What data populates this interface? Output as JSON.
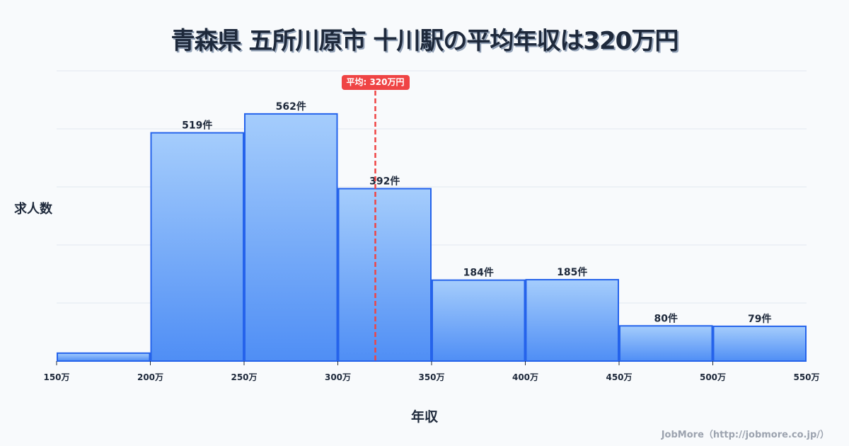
{
  "title": "青森県 五所川原市 十川駅の平均年収は320万円",
  "footer": "JobMore（http://jobmore.co.jp/）",
  "colors": {
    "bar_stroke": "#2563eb",
    "bar_fill_top": "#a5cdfc",
    "bar_fill_bottom": "#4f8ef5",
    "mean_line": "#ef4444",
    "gridline": "#e2e8f0",
    "text": "#1e293b",
    "background": "#f8fafc"
  },
  "chart_data": {
    "type": "bar",
    "subtype": "histogram",
    "title": "青森県 五所川原市 十川駅の平均年収は320万円",
    "xlabel": "年収",
    "ylabel": "求人数",
    "bin_edges": [
      150,
      200,
      250,
      300,
      350,
      400,
      450,
      500,
      550
    ],
    "x_tick_labels": [
      "150万",
      "200万",
      "250万",
      "300万",
      "350万",
      "400万",
      "450万",
      "500万",
      "550万"
    ],
    "categories": [
      "150-200万",
      "200-250万",
      "250-300万",
      "300-350万",
      "350-400万",
      "400-450万",
      "450-500万",
      "500-550万"
    ],
    "values": [
      18,
      519,
      562,
      392,
      184,
      185,
      80,
      79
    ],
    "value_labels": [
      "",
      "519件",
      "562件",
      "392件",
      "184件",
      "185件",
      "80件",
      "79件"
    ],
    "ylim": [
      0,
      660
    ],
    "grid": true,
    "legend": null,
    "annotations": [
      {
        "type": "vline",
        "x": 320,
        "style": "dashed",
        "label": "平均: 320万円"
      }
    ]
  }
}
